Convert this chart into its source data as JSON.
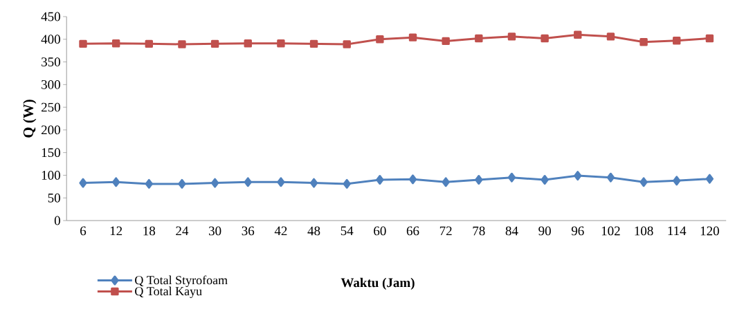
{
  "chart_data": {
    "type": "line",
    "xlabel": "Waktu (Jam)",
    "ylabel": "Q  (W)",
    "categories": [
      "6",
      "12",
      "18",
      "24",
      "30",
      "36",
      "42",
      "48",
      "54",
      "60",
      "66",
      "72",
      "78",
      "84",
      "90",
      "96",
      "102",
      "108",
      "114",
      "120"
    ],
    "ylim": [
      0,
      450
    ],
    "yticks": [
      0,
      50,
      100,
      150,
      200,
      250,
      300,
      350,
      400,
      450
    ],
    "grid": false,
    "legend": "bottom left",
    "line_style": "solid",
    "series": [
      {
        "name": "Q Total Styrofoam",
        "color": "#4f81bd",
        "marker": "diamond",
        "values": [
          83,
          85,
          81,
          81,
          83,
          85,
          85,
          83,
          81,
          90,
          91,
          85,
          90,
          95,
          90,
          99,
          95,
          85,
          88,
          92
        ]
      },
      {
        "name": "Q Total Kayu",
        "color": "#c0504d",
        "marker": "square",
        "values": [
          390,
          391,
          390,
          389,
          390,
          391,
          391,
          390,
          389,
          400,
          404,
          396,
          402,
          406,
          402,
          410,
          406,
          394,
          397,
          402
        ]
      }
    ]
  }
}
